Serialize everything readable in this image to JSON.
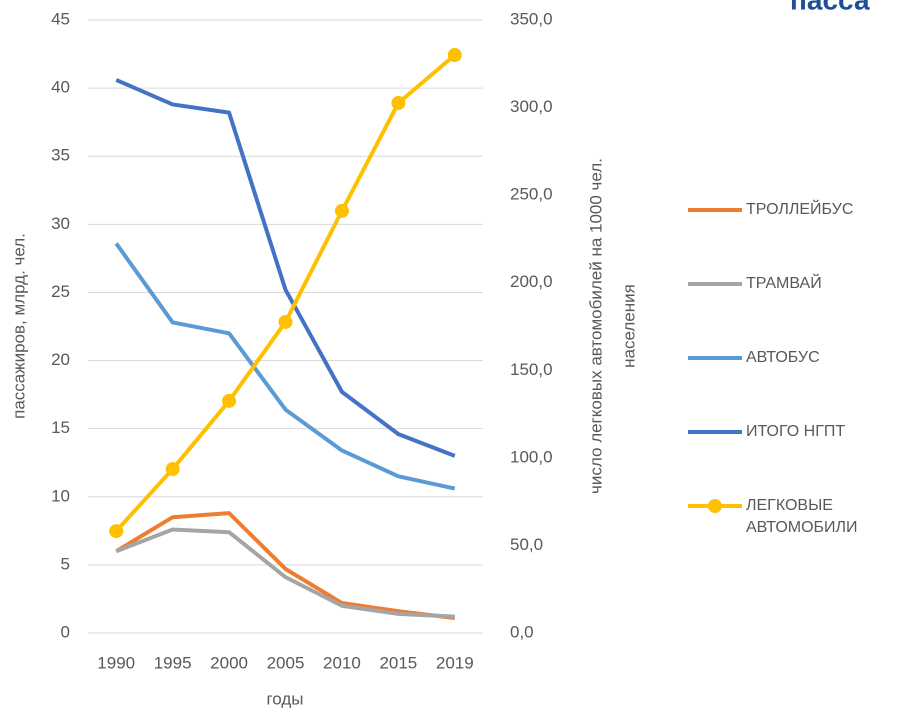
{
  "chart_data": {
    "type": "line",
    "title": "пасса",
    "xlabel": "годы",
    "ylabel": "пассажиров, млрд. чел.",
    "y2label": [
      "число легковых автомобилей на 1000 чел.",
      "населения"
    ],
    "categories": [
      "1990",
      "1995",
      "2000",
      "2005",
      "2010",
      "2015",
      "2019"
    ],
    "ylim": [
      0,
      45
    ],
    "yticks": [
      0,
      5,
      10,
      15,
      20,
      25,
      30,
      35,
      40,
      45
    ],
    "y2lim": [
      0,
      350
    ],
    "y2ticks": [
      {
        "value": 0,
        "label": "0,0"
      },
      {
        "value": 50,
        "label": "50,0"
      },
      {
        "value": 100,
        "label": "100,0"
      },
      {
        "value": 150,
        "label": "150,0"
      },
      {
        "value": 200,
        "label": "200,0"
      },
      {
        "value": 250,
        "label": "250,0"
      },
      {
        "value": 300,
        "label": "300,0"
      },
      {
        "value": 350,
        "label": "350,0"
      }
    ],
    "grid": true,
    "series": [
      {
        "name": "ТРОЛЛЕЙБУС",
        "color": "#ed7d31",
        "values": [
          6.0,
          8.5,
          8.8,
          4.7,
          2.2,
          1.6,
          1.1
        ]
      },
      {
        "name": "ТРАМВАЙ",
        "color": "#a5a5a5",
        "values": [
          6.0,
          7.6,
          7.4,
          4.1,
          2.0,
          1.4,
          1.2
        ]
      },
      {
        "name": "АВТОБУС",
        "color": "#5b9bd5",
        "values": [
          28.6,
          22.8,
          22.0,
          16.4,
          13.4,
          11.5,
          10.6
        ]
      },
      {
        "name": "ИТОГО НГПТ",
        "color": "#4472c4",
        "values": [
          40.6,
          38.8,
          38.2,
          25.2,
          17.7,
          14.6,
          13.0
        ]
      },
      {
        "name": "ЛЕГКОВЫЕ АВТОМОБИЛИ",
        "color": "#ffc000",
        "axis": "y2",
        "markers": true,
        "values": [
          58.2,
          93.6,
          132.5,
          177.6,
          241.0,
          302.6,
          330.0
        ]
      }
    ]
  }
}
